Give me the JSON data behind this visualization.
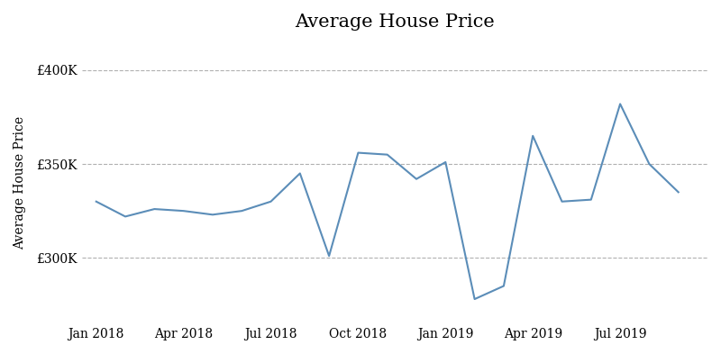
{
  "title": "Average House Price",
  "ylabel": "Average House Price",
  "line_color": "#5b8db8",
  "background_color": "#ffffff",
  "grid_color": "#b0b0b0",
  "title_fontsize": 15,
  "ylabel_fontsize": 10,
  "tick_fontsize": 10,
  "ylim": [
    265000,
    415000
  ],
  "yticks": [
    300000,
    350000,
    400000
  ],
  "ytick_labels": [
    "£300K",
    "£350K",
    "£400K"
  ],
  "xtick_labels": [
    "Jan 2018",
    "Apr 2018",
    "Jul 2018",
    "Oct 2018",
    "Jan 2019",
    "Apr 2019",
    "Jul 2019"
  ],
  "xtick_positions": [
    0,
    3,
    6,
    9,
    12,
    15,
    18
  ],
  "x": [
    0,
    1,
    2,
    3,
    4,
    5,
    6,
    7,
    8,
    9,
    10,
    11,
    12,
    13,
    14,
    15,
    16,
    17,
    18,
    19,
    20
  ],
  "values": [
    330000,
    322000,
    326000,
    325000,
    323000,
    325000,
    330000,
    345000,
    301000,
    356000,
    355000,
    342000,
    351000,
    278000,
    285000,
    365000,
    330000,
    331000,
    382000,
    350000,
    335000
  ]
}
